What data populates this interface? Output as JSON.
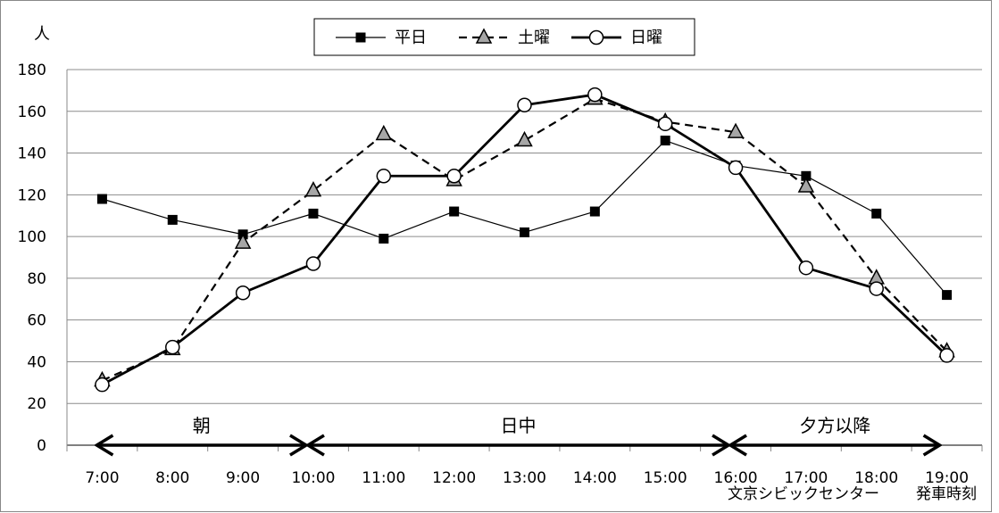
{
  "chart_data": {
    "type": "line",
    "y_unit_label": "人",
    "ylim": [
      0,
      180
    ],
    "y_ticks": [
      "0",
      "20",
      "40",
      "60",
      "80",
      "100",
      "120",
      "140",
      "160",
      "180"
    ],
    "categories": [
      "7:00",
      "8:00",
      "9:00",
      "10:00",
      "11:00",
      "12:00",
      "13:00",
      "14:00",
      "15:00",
      "16:00",
      "17:00",
      "18:00",
      "19:00"
    ],
    "x_caption_left": "文京シビックセンター",
    "x_caption_right": "発車時刻",
    "grid": "horizontal",
    "legend_position": "top-center",
    "series": [
      {
        "name": "平日",
        "line_style": "solid-thin",
        "marker": "square",
        "values": [
          118,
          108,
          101,
          111,
          99,
          112,
          102,
          112,
          146,
          134,
          129,
          111,
          72
        ]
      },
      {
        "name": "土曜",
        "line_style": "dashed",
        "marker": "triangle",
        "values": [
          31,
          46,
          97,
          122,
          149,
          127,
          146,
          166,
          155,
          150,
          124,
          80,
          45
        ]
      },
      {
        "name": "日曜",
        "line_style": "solid-thick",
        "marker": "circle",
        "values": [
          29,
          47,
          73,
          87,
          129,
          129,
          163,
          168,
          154,
          133,
          85,
          75,
          43
        ]
      }
    ],
    "periods": [
      {
        "label": "朝",
        "from": "7:00",
        "to": "10:00"
      },
      {
        "label": "日中",
        "from": "10:00",
        "to": "16:00"
      },
      {
        "label": "夕方以降",
        "from": "16:00",
        "to": "19:00"
      }
    ]
  },
  "colors": {
    "line": "#000000",
    "grid": "#8c8c8c",
    "triangle_fill": "#a6a6a6",
    "circle_fill": "#ffffff"
  }
}
